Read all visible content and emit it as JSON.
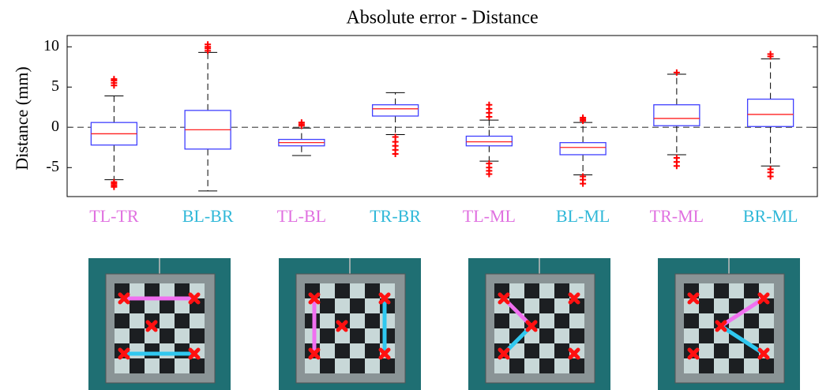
{
  "chart_data": {
    "type": "box",
    "title": "Absolute error - Distance",
    "y_label": "Distance (mm)",
    "categories": [
      "TL-TR",
      "BL-BR",
      "TL-BL",
      "TR-BR",
      "TL-ML",
      "BL-ML",
      "TR-ML",
      "BR-ML"
    ],
    "category_colors": [
      "#e070e0",
      "#30b8d8",
      "#e070e0",
      "#30b8d8",
      "#e070e0",
      "#30b8d8",
      "#e070e0",
      "#30b8d8"
    ],
    "box_color": "#4040ff",
    "median_color": "#ff2020",
    "flier_color": "#ff0000",
    "reference_line": 0,
    "boxes": [
      {
        "whislo": -6.5,
        "q1": -2.2,
        "med": -0.8,
        "q3": 0.6,
        "whishi": 3.9,
        "fliers": [
          5.2,
          5.5,
          5.8,
          6.0,
          -6.8,
          -7.0,
          -7.2,
          -7.4
        ]
      },
      {
        "whislo": -7.9,
        "q1": -2.7,
        "med": -0.3,
        "q3": 2.1,
        "whishi": 9.3,
        "fliers": [
          9.5,
          9.8,
          10.0,
          10.3
        ]
      },
      {
        "whislo": -3.5,
        "q1": -2.3,
        "med": -1.9,
        "q3": -1.5,
        "whishi": -0.1,
        "fliers": [
          0.2,
          0.4,
          0.6
        ]
      },
      {
        "whislo": -0.9,
        "q1": 1.4,
        "med": 2.3,
        "q3": 2.8,
        "whishi": 4.3,
        "fliers": [
          -1.2,
          -1.8,
          -2.3,
          -2.8,
          -3.3
        ]
      },
      {
        "whislo": -4.2,
        "q1": -2.3,
        "med": -1.8,
        "q3": -1.1,
        "whishi": 0.9,
        "fliers": [
          1.3,
          1.8,
          2.3,
          2.8,
          -4.5,
          -5.0,
          -5.4,
          -5.8
        ]
      },
      {
        "whislo": -5.9,
        "q1": -3.4,
        "med": -2.5,
        "q3": -1.9,
        "whishi": 0.6,
        "fliers": [
          0.8,
          1.0,
          1.2,
          -6.1,
          -6.5,
          -7.0
        ]
      },
      {
        "whislo": -3.4,
        "q1": 0.2,
        "med": 1.1,
        "q3": 2.8,
        "whishi": 6.6,
        "fliers": [
          6.8,
          -3.8,
          -4.3,
          -4.8
        ]
      },
      {
        "whislo": -4.8,
        "q1": 0.1,
        "med": 1.6,
        "q3": 3.5,
        "whishi": 8.5,
        "fliers": [
          8.8,
          9.1,
          -5.2,
          -5.6,
          -6.1
        ]
      }
    ],
    "ylim": [
      -8.6,
      11.4
    ],
    "yticks": [
      -5,
      0,
      5,
      10
    ]
  }
}
